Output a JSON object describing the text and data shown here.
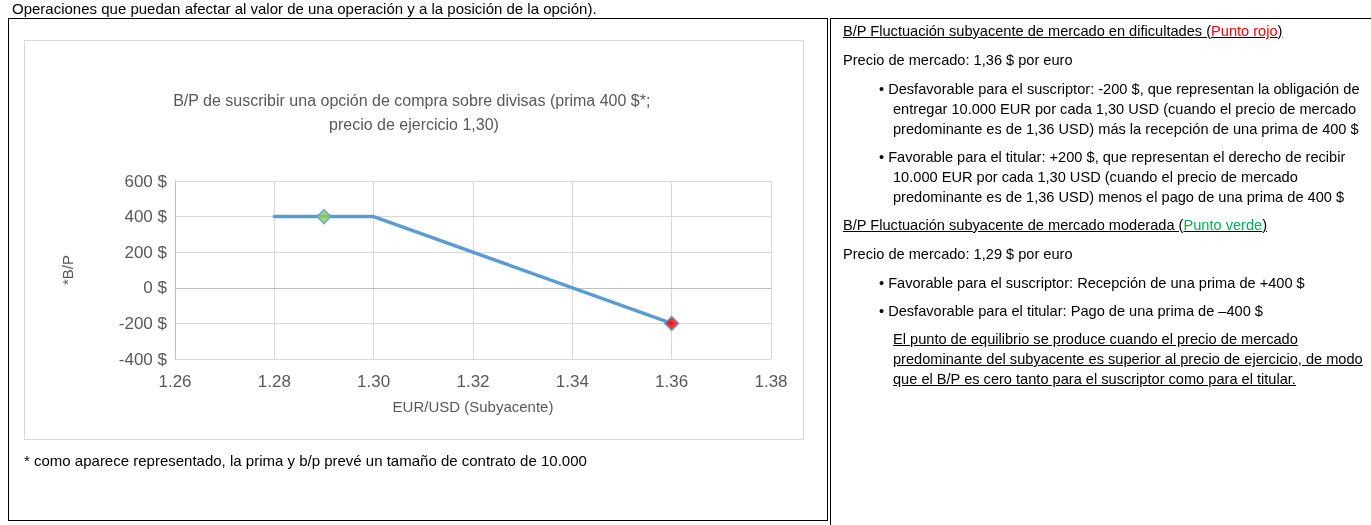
{
  "chart_data": {
    "type": "line",
    "title": "B/P de suscribir una opción de compra sobre divisas (prima 400 $*; precio de ejercicio 1,30)",
    "xlabel": "EUR/USD (Subyacente)",
    "ylabel": "*B/P",
    "xlim": [
      1.26,
      1.38
    ],
    "xticks": [
      1.26,
      1.28,
      {
        "value": 1.3,
        "label": "1.30"
      },
      1.32,
      1.34,
      1.36,
      1.38
    ],
    "ylim": [
      -400,
      600
    ],
    "yticks": [
      {
        "value": -400,
        "label": "-400 $"
      },
      {
        "value": -200,
        "label": "-200 $"
      },
      {
        "value": 0,
        "label": "0 $"
      },
      {
        "value": 200,
        "label": "200 $"
      },
      {
        "value": 400,
        "label": "400 $"
      },
      {
        "value": 600,
        "label": "600 $"
      }
    ],
    "grid": true,
    "series": [
      {
        "color": "#5b9bd5",
        "x": [
          1.28,
          1.3,
          1.36
        ],
        "values": [
          400,
          400,
          -200
        ],
        "marker": "none",
        "line_style": "solid"
      },
      {
        "type": "scatter",
        "color": "#92d050",
        "x": [
          1.29
        ],
        "values": [
          400
        ],
        "marker": "diamond"
      },
      {
        "type": "scatter",
        "color": "#ff0000",
        "x": [
          1.36
        ],
        "values": [
          -200
        ],
        "marker": "diamond"
      }
    ],
    "annotations": [
      "Operaciones que puedan afectar al valor de una operación y a la posición de la opción).",
      "* como aparece representado, la prima y b/p prevé un tamaño de contrato de 10.000",
      "B/P Fluctuación subyacente de mercado en dificultades (",
      "Punto rojo",
      ")",
      "Precio de mercado: 1,36 $ por euro",
      "• Desfavorable para el suscriptor: -200 $, que representan la obligación de entregar 10.000 EUR por cada 1,30 USD (cuando el precio de mercado predominante es de 1,36 USD) más la recepción de una prima de 400 $",
      "• Favorable para el titular: +200 $, que representan el derecho de recibir 10.000 EUR por cada 1,30 USD (cuando el precio de mercado predominante es de 1,36 USD) menos el pago de una prima de 400 $",
      "B/P Fluctuación subyacente de mercado moderada (",
      "Punto verde",
      ")",
      "Precio de mercado: 1,29 $ por euro",
      "• Favorable para el suscriptor: Recepción de una prima de +400 $",
      "• Desfavorable para el titular: Pago de una prima de –400 $",
      "El punto de equilibrio se produce cuando el precio de mercado predominante del subyacente es superior al precio de ejercicio, de modo que el B/P es cero tanto para el suscriptor como para el titular."
    ]
  }
}
